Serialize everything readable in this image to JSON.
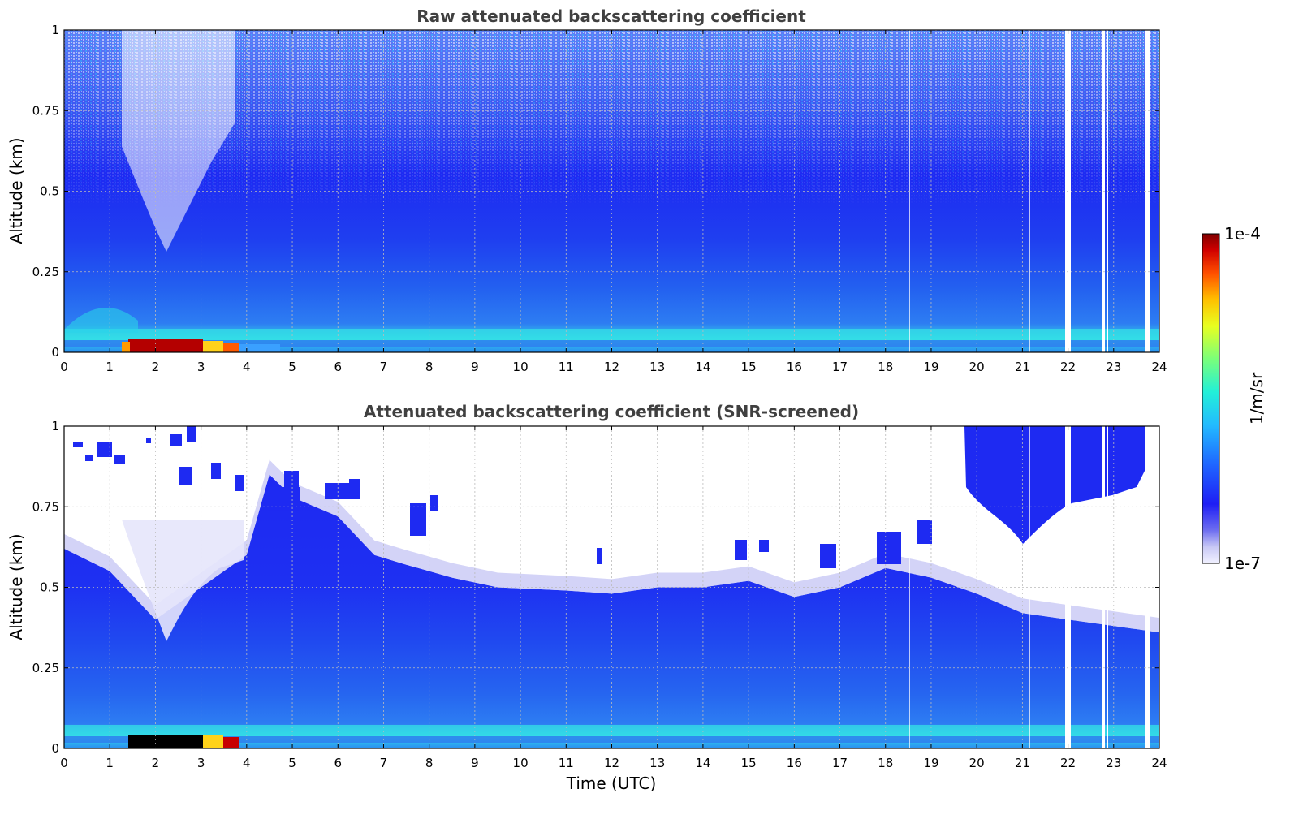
{
  "chart_data": [
    {
      "type": "heatmap",
      "title": "Raw attenuated backscattering coefficient",
      "xlabel": "",
      "ylabel": "Altitude (km)",
      "xlim": [
        0,
        24
      ],
      "ylim": [
        0,
        1
      ],
      "xticks": [
        "0",
        "1",
        "2",
        "3",
        "4",
        "5",
        "6",
        "7",
        "8",
        "9",
        "10",
        "11",
        "12",
        "13",
        "14",
        "15",
        "16",
        "17",
        "18",
        "19",
        "20",
        "21",
        "22",
        "23",
        "24"
      ],
      "yticks": [
        "0",
        "0.25",
        "0.5",
        "0.75",
        "1"
      ],
      "grid": true,
      "colorscale": "jet",
      "missing_data_time_ranges_utc": [
        [
          21.93,
          22.06
        ],
        [
          22.75,
          22.82
        ],
        [
          22.85,
          22.9
        ],
        [
          23.6,
          23.72
        ]
      ],
      "high_signal_near_surface_utc": [
        1.4,
        3.0
      ]
    },
    {
      "type": "heatmap",
      "title": "Attenuated backscattering coefficient (SNR-screened)",
      "xlabel": "Time (UTC)",
      "ylabel": "Altitude (km)",
      "xlim": [
        0,
        24
      ],
      "ylim": [
        0,
        1
      ],
      "xticks": [
        "0",
        "1",
        "2",
        "3",
        "4",
        "5",
        "6",
        "7",
        "8",
        "9",
        "10",
        "11",
        "12",
        "13",
        "14",
        "15",
        "16",
        "17",
        "18",
        "19",
        "20",
        "21",
        "22",
        "23",
        "24"
      ],
      "yticks": [
        "0",
        "0.25",
        "0.5",
        "0.75",
        "1"
      ],
      "grid": true,
      "colorscale": "jet",
      "screened_top_km": [
        [
          0,
          0.62
        ],
        [
          1,
          0.55
        ],
        [
          2,
          0.4
        ],
        [
          3,
          0.5
        ],
        [
          4,
          0.6
        ],
        [
          4.5,
          0.85
        ],
        [
          5,
          0.78
        ],
        [
          6,
          0.72
        ],
        [
          6.8,
          0.6
        ],
        [
          7.5,
          0.57
        ],
        [
          8.5,
          0.53
        ],
        [
          9.5,
          0.5
        ],
        [
          11,
          0.49
        ],
        [
          12,
          0.48
        ],
        [
          13,
          0.5
        ],
        [
          14,
          0.5
        ],
        [
          15,
          0.52
        ],
        [
          16,
          0.47
        ],
        [
          17,
          0.5
        ],
        [
          18,
          0.56
        ],
        [
          19,
          0.53
        ],
        [
          20,
          0.48
        ],
        [
          21,
          0.42
        ],
        [
          22,
          0.4
        ],
        [
          23,
          0.38
        ],
        [
          24,
          0.36
        ]
      ],
      "missing_data_time_ranges_utc": [
        [
          21.93,
          22.06
        ],
        [
          22.75,
          22.82
        ],
        [
          22.85,
          22.9
        ],
        [
          23.6,
          23.72
        ]
      ],
      "upper_echo_utc": [
        19.8,
        23.7
      ]
    }
  ],
  "colorbar": {
    "label": "1/m/sr",
    "max_label": "1e-4",
    "min_label": "1e-7",
    "range": [
      1e-07,
      0.0001
    ],
    "scale": "log"
  }
}
